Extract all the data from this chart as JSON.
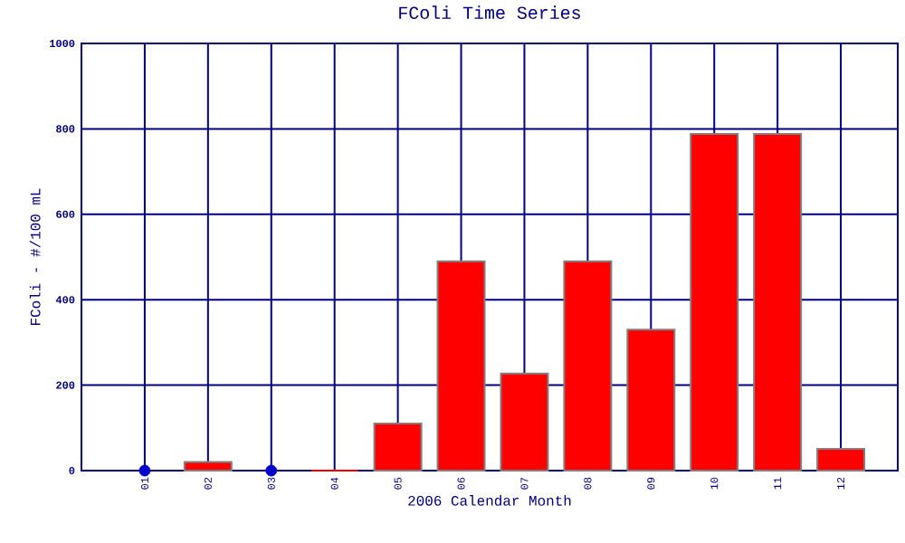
{
  "chart_data": {
    "type": "bar",
    "title": "FColi Time Series",
    "xlabel": "2006 Calendar Month",
    "ylabel": "FColi - #/100 mL",
    "categories": [
      "01",
      "02",
      "03",
      "04",
      "05",
      "06",
      "07",
      "08",
      "09",
      "10",
      "11",
      "12"
    ],
    "series": [
      {
        "color": "#ff0000",
        "values": [
          null,
          20,
          null,
          0,
          110,
          490,
          227,
          490,
          330,
          788,
          788,
          51
        ]
      },
      {
        "type": "scatter",
        "color": "#0000cc",
        "marker": "circle",
        "values": [
          0,
          null,
          0,
          null,
          null,
          null,
          null,
          null,
          null,
          null,
          null,
          null
        ]
      }
    ],
    "ylim": [
      0,
      1000
    ],
    "yticks": [
      0,
      200,
      400,
      600,
      800,
      1000
    ],
    "grid": true
  }
}
